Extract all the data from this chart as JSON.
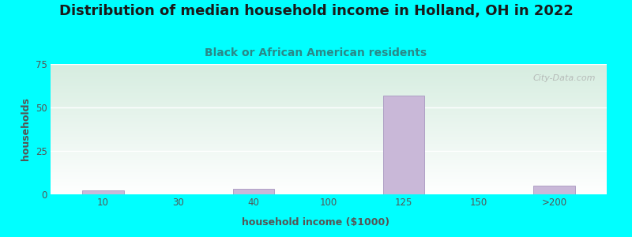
{
  "title": "Distribution of median household income in Holland, OH in 2022",
  "subtitle": "Black or African American residents",
  "xlabel": "household income ($1000)",
  "ylabel": "households",
  "title_fontsize": 13,
  "subtitle_fontsize": 10,
  "label_fontsize": 9,
  "tick_fontsize": 8.5,
  "background_outer": "#00FFFF",
  "bg_top_color": "#d6ede0",
  "bg_bottom_color": "#ffffff",
  "bar_color": "#c9b8d8",
  "bar_edge_color": "#a898c0",
  "categories": [
    "10",
    "30",
    "40",
    "100",
    "125",
    "150",
    ">200"
  ],
  "values": [
    2.5,
    0,
    3,
    0,
    57,
    0,
    5
  ],
  "ylim": [
    0,
    75
  ],
  "yticks": [
    0,
    25,
    50,
    75
  ],
  "watermark": "City-Data.com",
  "watermark_icon": "ⓘ",
  "title_color": "#1a1a1a",
  "subtitle_color": "#2a8888",
  "tick_color": "#555555",
  "label_color": "#555555"
}
